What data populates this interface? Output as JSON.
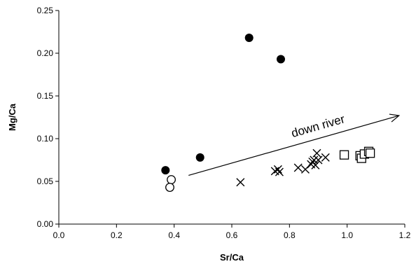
{
  "chart_data": {
    "type": "scatter",
    "xlabel": "Sr/Ca",
    "ylabel": "Mg/Ca",
    "xlim": [
      0,
      1.2
    ],
    "ylim": [
      0,
      0.25
    ],
    "x_ticks": [
      "0.0",
      "0.2",
      "0.4",
      "0.6",
      "0.8",
      "1.0",
      "1.2"
    ],
    "y_ticks": [
      "0.00",
      "0.05",
      "0.10",
      "0.15",
      "0.20",
      "0.25"
    ],
    "grid": false,
    "legend": "none",
    "series": [
      {
        "marker": "filled-circle",
        "color": "#000000",
        "points": [
          [
            0.37,
            0.063
          ],
          [
            0.49,
            0.078
          ],
          [
            0.66,
            0.218
          ],
          [
            0.77,
            0.193
          ]
        ]
      },
      {
        "marker": "open-circle",
        "color": "#000000",
        "points": [
          [
            0.39,
            0.052
          ],
          [
            0.385,
            0.043
          ]
        ]
      },
      {
        "marker": "cross",
        "color": "#000000",
        "points": [
          [
            0.63,
            0.049
          ],
          [
            0.75,
            0.062
          ],
          [
            0.76,
            0.064
          ],
          [
            0.765,
            0.061
          ],
          [
            0.83,
            0.066
          ],
          [
            0.855,
            0.064
          ],
          [
            0.875,
            0.07
          ],
          [
            0.88,
            0.073
          ],
          [
            0.885,
            0.075
          ],
          [
            0.89,
            0.069
          ],
          [
            0.895,
            0.083
          ],
          [
            0.9,
            0.075
          ],
          [
            0.925,
            0.078
          ]
        ]
      },
      {
        "marker": "open-square",
        "color": "#000000",
        "points": [
          [
            0.99,
            0.081
          ],
          [
            1.045,
            0.08
          ],
          [
            1.05,
            0.077
          ],
          [
            1.06,
            0.082
          ],
          [
            1.075,
            0.085
          ],
          [
            1.08,
            0.083
          ]
        ]
      }
    ],
    "annotations": [
      {
        "text": "down river",
        "arrow_from": [
          0.45,
          0.057
        ],
        "arrow_to": [
          1.18,
          0.127
        ]
      }
    ]
  }
}
